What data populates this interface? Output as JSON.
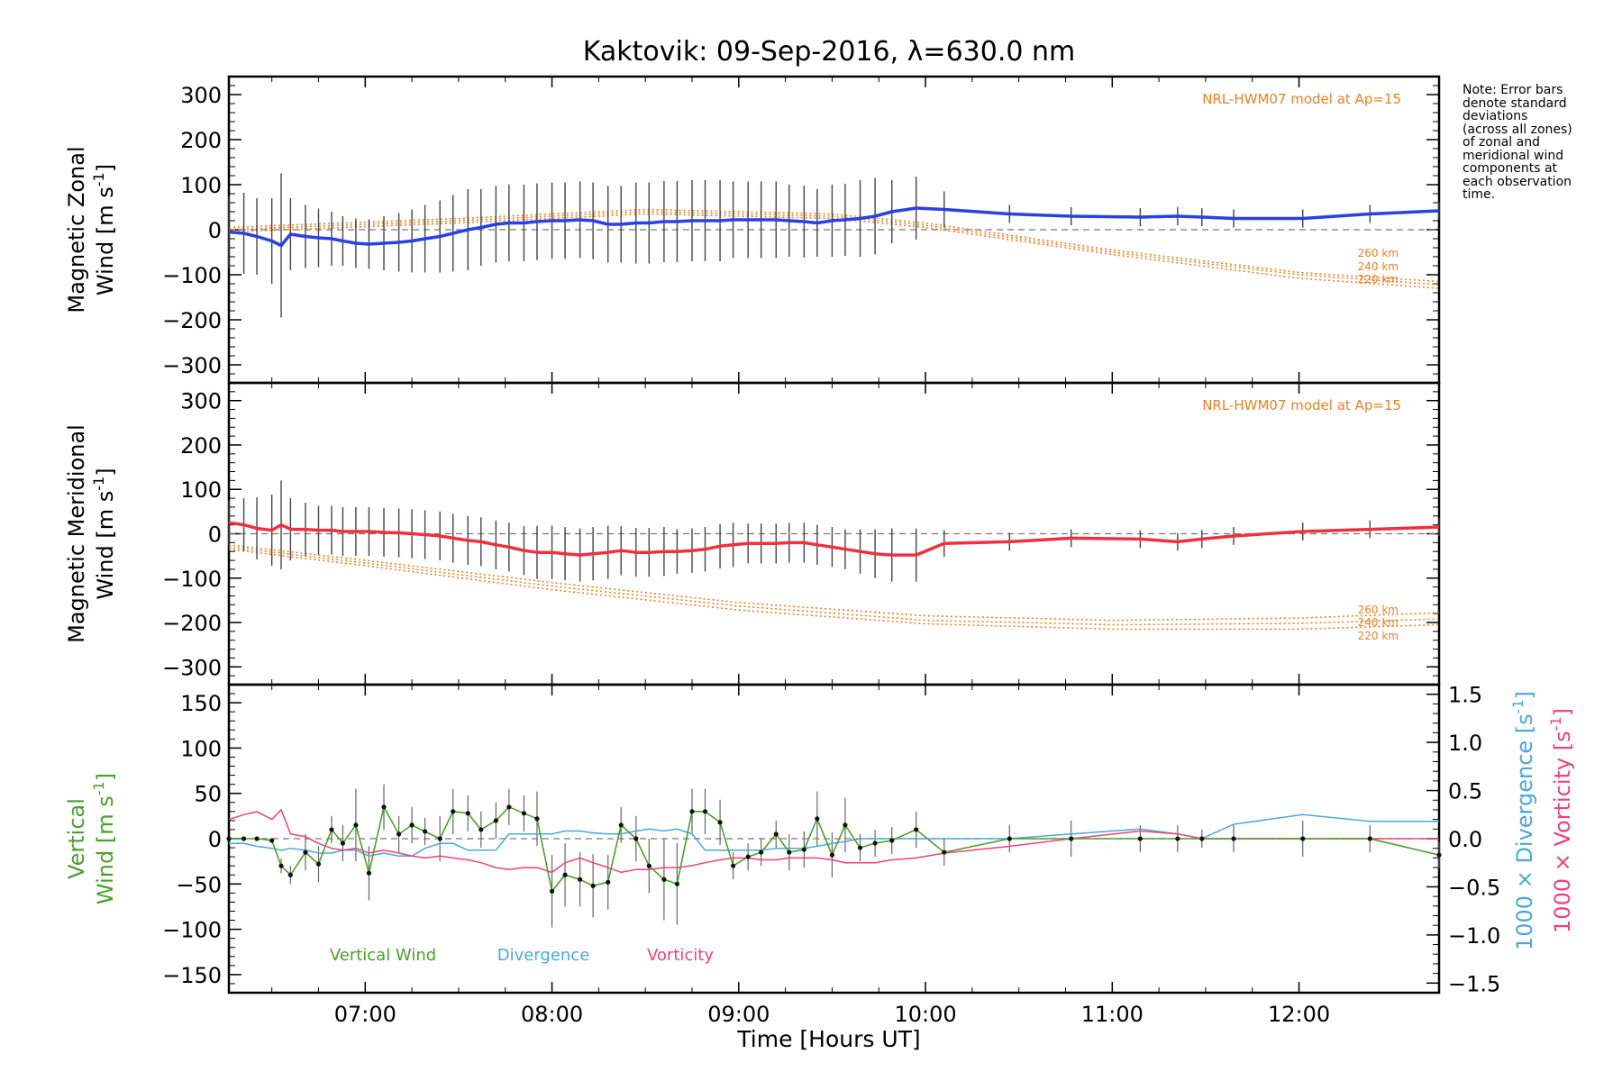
{
  "title": "Kaktovik: 09-Sep-2016, λ=630.0 nm",
  "note": "Note: Error bars\ndenote standard\ndeviations\n(across all zones)\nof zonal and\nmeridional wind\ncomponents at\neach observation\ntime.",
  "xlabel": "Time [Hours UT]",
  "colors": {
    "zonal": "#2a3fe6",
    "meridional": "#f03040",
    "model": "#f08020",
    "vertical": "#4aa02a",
    "divergence": "#4aa8d8",
    "vorticity": "#f0407a",
    "errorbar": "#444444"
  },
  "chart_data": [
    {
      "type": "line",
      "panel": "zonal",
      "ylabel_line1": "Magnetic Zonal",
      "ylabel_line2": "Wind [m s",
      "ylabel_sup": "-1",
      "ylabel_end": "]",
      "model_label": "NRL-HWM07 model at Ap=15",
      "model_altitudes": [
        "260 km",
        "240 km",
        "220 km"
      ],
      "xlim": [
        6.27,
        12.75
      ],
      "ylim": [
        -340,
        340
      ],
      "yticks": [
        300,
        200,
        100,
        0,
        -100,
        -200,
        -300
      ],
      "ytick_labels": [
        "300",
        "200",
        "100",
        "0",
        "−100",
        "−200",
        "−300"
      ],
      "xticks": [
        7,
        8,
        9,
        10,
        11,
        12
      ],
      "grid": false,
      "zero_line": true,
      "series": [
        {
          "x": [
            6.27,
            6.35,
            6.42,
            6.5,
            6.55,
            6.6,
            6.68,
            6.75,
            6.82,
            6.88,
            6.95,
            7.02,
            7.1,
            7.18,
            7.25,
            7.32,
            7.4,
            7.47,
            7.55,
            7.62,
            7.7,
            7.77,
            7.85,
            7.92,
            8.0,
            8.07,
            8.15,
            8.22,
            8.3,
            8.37,
            8.45,
            8.52,
            8.6,
            8.67,
            8.75,
            8.82,
            8.9,
            8.97,
            9.05,
            9.12,
            9.2,
            9.27,
            9.35,
            9.42,
            9.5,
            9.57,
            9.65,
            9.73,
            9.82,
            9.95,
            10.1,
            10.45,
            10.78,
            11.15,
            11.35,
            11.48,
            11.65,
            12.02,
            12.38,
            12.75
          ],
          "y": [
            -5,
            -8,
            -15,
            -25,
            -35,
            -10,
            -15,
            -18,
            -20,
            -25,
            -30,
            -32,
            -30,
            -28,
            -25,
            -20,
            -15,
            -8,
            0,
            5,
            12,
            15,
            15,
            18,
            20,
            20,
            22,
            20,
            12,
            12,
            15,
            15,
            18,
            18,
            20,
            20,
            20,
            22,
            22,
            22,
            22,
            20,
            18,
            15,
            20,
            22,
            25,
            30,
            40,
            48,
            45,
            35,
            30,
            28,
            30,
            28,
            25,
            25,
            35,
            42
          ],
          "err": [
            80,
            90,
            85,
            95,
            160,
            80,
            70,
            65,
            60,
            55,
            55,
            55,
            60,
            65,
            70,
            75,
            80,
            85,
            90,
            85,
            85,
            85,
            85,
            85,
            85,
            85,
            85,
            85,
            85,
            85,
            90,
            90,
            90,
            90,
            90,
            90,
            90,
            85,
            85,
            85,
            85,
            80,
            80,
            75,
            80,
            80,
            85,
            85,
            70,
            70,
            40,
            20,
            20,
            20,
            20,
            20,
            20,
            20,
            20,
            20
          ]
        }
      ],
      "models": [
        {
          "label": "260 km",
          "x": [
            6.27,
            7.5,
            8.5,
            9.5,
            10.0,
            11.0,
            12.0,
            12.75
          ],
          "y": [
            5,
            25,
            45,
            35,
            15,
            -45,
            -95,
            -115
          ]
        },
        {
          "label": "240 km",
          "x": [
            6.27,
            7.5,
            8.5,
            9.5,
            10.0,
            11.0,
            12.0,
            12.75
          ],
          "y": [
            0,
            20,
            40,
            30,
            10,
            -50,
            -100,
            -122
          ]
        },
        {
          "label": "220 km",
          "x": [
            6.27,
            7.5,
            8.5,
            9.5,
            10.0,
            11.0,
            12.0,
            12.75
          ],
          "y": [
            -5,
            15,
            35,
            25,
            5,
            -55,
            -108,
            -130
          ]
        }
      ]
    },
    {
      "type": "line",
      "panel": "meridional",
      "ylabel_line1": "Magnetic Meridional",
      "ylabel_line2": "Wind [m s",
      "ylabel_sup": "-1",
      "ylabel_end": "]",
      "model_label": "NRL-HWM07 model at Ap=15",
      "model_altitudes": [
        "260 km",
        "240 km",
        "220 km"
      ],
      "xlim": [
        6.27,
        12.75
      ],
      "ylim": [
        -340,
        340
      ],
      "yticks": [
        300,
        200,
        100,
        0,
        -100,
        -200,
        -300
      ],
      "ytick_labels": [
        "300",
        "200",
        "100",
        "0",
        "−100",
        "−200",
        "−300"
      ],
      "xticks": [
        7,
        8,
        9,
        10,
        11,
        12
      ],
      "grid": false,
      "zero_line": true,
      "series": [
        {
          "x": [
            6.27,
            6.35,
            6.42,
            6.5,
            6.55,
            6.6,
            6.68,
            6.75,
            6.82,
            6.88,
            6.95,
            7.02,
            7.1,
            7.18,
            7.25,
            7.32,
            7.4,
            7.47,
            7.55,
            7.62,
            7.7,
            7.77,
            7.85,
            7.92,
            8.0,
            8.07,
            8.15,
            8.22,
            8.3,
            8.37,
            8.45,
            8.52,
            8.6,
            8.67,
            8.75,
            8.82,
            8.9,
            8.97,
            9.05,
            9.12,
            9.2,
            9.27,
            9.35,
            9.42,
            9.5,
            9.57,
            9.65,
            9.73,
            9.82,
            9.95,
            10.1,
            10.45,
            10.78,
            11.15,
            11.35,
            11.48,
            11.65,
            12.02,
            12.38,
            12.75
          ],
          "y": [
            25,
            20,
            12,
            8,
            20,
            10,
            10,
            8,
            8,
            5,
            5,
            5,
            3,
            2,
            0,
            -2,
            -5,
            -10,
            -15,
            -18,
            -25,
            -30,
            -38,
            -42,
            -42,
            -45,
            -48,
            -45,
            -42,
            -38,
            -42,
            -42,
            -40,
            -40,
            -38,
            -35,
            -28,
            -25,
            -22,
            -22,
            -22,
            -20,
            -20,
            -25,
            -30,
            -35,
            -40,
            -45,
            -48,
            -48,
            -22,
            -18,
            -10,
            -12,
            -18,
            -12,
            -5,
            5,
            10,
            15
          ],
          "err": [
            50,
            60,
            70,
            80,
            100,
            70,
            60,
            55,
            55,
            55,
            55,
            55,
            55,
            55,
            55,
            55,
            55,
            55,
            55,
            55,
            55,
            55,
            55,
            60,
            60,
            60,
            60,
            60,
            60,
            55,
            55,
            55,
            55,
            50,
            50,
            50,
            50,
            50,
            45,
            45,
            45,
            45,
            45,
            45,
            45,
            45,
            50,
            55,
            60,
            60,
            30,
            20,
            20,
            20,
            20,
            20,
            20,
            20,
            20,
            20
          ]
        }
      ],
      "models": [
        {
          "label": "260 km",
          "x": [
            6.27,
            7.0,
            8.0,
            9.0,
            10.0,
            11.0,
            12.0,
            12.75
          ],
          "y": [
            -25,
            -60,
            -110,
            -155,
            -185,
            -195,
            -190,
            -178
          ]
        },
        {
          "label": "240 km",
          "x": [
            6.27,
            7.0,
            8.0,
            9.0,
            10.0,
            11.0,
            12.0,
            12.75
          ],
          "y": [
            -30,
            -66,
            -118,
            -163,
            -195,
            -205,
            -202,
            -192
          ]
        },
        {
          "label": "220 km",
          "x": [
            6.27,
            7.0,
            8.0,
            9.0,
            10.0,
            11.0,
            12.0,
            12.75
          ],
          "y": [
            -35,
            -72,
            -126,
            -172,
            -203,
            -215,
            -215,
            -205
          ]
        }
      ]
    },
    {
      "type": "line",
      "panel": "vertical",
      "ylabel_line1": "Vertical",
      "ylabel_line2": "Wind [m s",
      "ylabel_sup": "-1",
      "ylabel_end": "]",
      "right_label_div_a": "1000 × Divergence [s",
      "right_label_vor_a": "1000 × Vorticity [s",
      "right_label_sup": "-1",
      "right_label_end": "]",
      "xlim": [
        6.27,
        12.75
      ],
      "ylim": [
        -170,
        170
      ],
      "yticks": [
        150,
        100,
        50,
        0,
        -50,
        -100,
        -150
      ],
      "ytick_labels": [
        "150",
        "100",
        "50",
        "0",
        "−50",
        "−100",
        "−150"
      ],
      "y2lim": [
        -1.6,
        1.6
      ],
      "y2ticks": [
        1.5,
        1.0,
        0.5,
        0.0,
        -0.5,
        -1.0,
        -1.5
      ],
      "y2tick_labels": [
        "1.5",
        "1.0",
        "0.5",
        "0.0",
        "−0.5",
        "−1.0",
        "−1.5"
      ],
      "xticks": [
        7,
        8,
        9,
        10,
        11,
        12
      ],
      "xtick_labels": [
        "07:00",
        "08:00",
        "09:00",
        "10:00",
        "11:00",
        "12:00"
      ],
      "legend": [
        "Vertical Wind",
        "Divergence",
        "Vorticity"
      ],
      "zero_line": true,
      "series": [
        {
          "name": "Vertical Wind",
          "x": [
            6.27,
            6.35,
            6.42,
            6.5,
            6.55,
            6.6,
            6.68,
            6.75,
            6.82,
            6.88,
            6.95,
            7.02,
            7.1,
            7.18,
            7.25,
            7.32,
            7.4,
            7.47,
            7.55,
            7.62,
            7.7,
            7.77,
            7.85,
            7.92,
            8.0,
            8.07,
            8.15,
            8.22,
            8.3,
            8.37,
            8.45,
            8.52,
            8.6,
            8.67,
            8.75,
            8.82,
            8.9,
            8.97,
            9.05,
            9.12,
            9.2,
            9.27,
            9.35,
            9.42,
            9.5,
            9.57,
            9.65,
            9.73,
            9.82,
            9.95,
            10.1,
            10.45,
            10.78,
            11.15,
            11.35,
            11.48,
            11.65,
            12.02,
            12.38,
            12.75
          ],
          "y": [
            0,
            0,
            0,
            -2,
            -30,
            -40,
            -15,
            -28,
            10,
            -5,
            15,
            -38,
            35,
            5,
            15,
            8,
            0,
            30,
            28,
            10,
            20,
            35,
            28,
            22,
            -58,
            -40,
            -45,
            -52,
            -48,
            15,
            0,
            -30,
            -45,
            -50,
            30,
            30,
            18,
            -30,
            -20,
            -15,
            5,
            -15,
            -12,
            22,
            -18,
            15,
            -10,
            -5,
            -2,
            10,
            -15,
            0,
            0,
            0,
            0,
            0,
            0,
            0,
            0,
            -18
          ],
          "err": [
            0,
            0,
            0,
            0,
            8,
            10,
            20,
            20,
            15,
            20,
            40,
            30,
            25,
            20,
            20,
            15,
            25,
            25,
            20,
            20,
            20,
            20,
            20,
            30,
            40,
            35,
            30,
            35,
            30,
            20,
            25,
            30,
            45,
            45,
            25,
            25,
            25,
            15,
            15,
            15,
            15,
            20,
            20,
            30,
            25,
            30,
            15,
            15,
            15,
            20,
            15,
            15,
            20,
            15,
            15,
            10,
            15,
            20,
            15,
            15
          ]
        },
        {
          "name": "Divergence",
          "axis": "right",
          "x": [
            6.27,
            6.35,
            6.42,
            6.5,
            6.55,
            6.6,
            6.68,
            6.75,
            6.82,
            6.88,
            6.95,
            7.02,
            7.1,
            7.18,
            7.25,
            7.32,
            7.4,
            7.47,
            7.55,
            7.62,
            7.7,
            7.77,
            7.85,
            7.92,
            8.0,
            8.07,
            8.15,
            8.22,
            8.3,
            8.37,
            8.45,
            8.52,
            8.6,
            8.67,
            8.75,
            8.82,
            8.9,
            8.97,
            9.05,
            9.12,
            9.2,
            9.27,
            9.35,
            9.42,
            9.5,
            9.57,
            9.65,
            9.73,
            9.82,
            9.95,
            10.1,
            10.45,
            10.78,
            11.15,
            11.35,
            11.48,
            11.65,
            12.02,
            12.38,
            12.75
          ],
          "y": [
            -0.05,
            -0.05,
            -0.08,
            -0.1,
            -0.12,
            -0.1,
            -0.12,
            -0.15,
            -0.15,
            -0.12,
            -0.12,
            -0.18,
            -0.15,
            -0.18,
            -0.18,
            -0.1,
            -0.05,
            -0.05,
            -0.12,
            -0.12,
            -0.12,
            0.05,
            0.05,
            0.05,
            0.05,
            0.08,
            0.08,
            0.06,
            0.05,
            0.05,
            0.08,
            0.1,
            0.08,
            0.1,
            0.05,
            -0.12,
            -0.12,
            -0.12,
            -0.12,
            -0.12,
            -0.1,
            -0.1,
            -0.1,
            -0.08,
            -0.05,
            -0.03,
            0.0,
            0.0,
            0.0,
            0.0,
            0.0,
            0.0,
            0.05,
            0.1,
            0.05,
            0.0,
            0.15,
            0.25,
            0.18,
            0.18
          ]
        },
        {
          "name": "Vorticity",
          "axis": "right",
          "x": [
            6.27,
            6.35,
            6.42,
            6.5,
            6.55,
            6.6,
            6.68,
            6.75,
            6.82,
            6.88,
            6.95,
            7.02,
            7.1,
            7.18,
            7.25,
            7.32,
            7.4,
            7.47,
            7.55,
            7.62,
            7.7,
            7.77,
            7.85,
            7.92,
            8.0,
            8.07,
            8.15,
            8.22,
            8.3,
            8.37,
            8.45,
            8.52,
            8.6,
            8.67,
            8.75,
            8.82,
            8.9,
            8.97,
            9.05,
            9.12,
            9.2,
            9.27,
            9.35,
            9.42,
            9.5,
            9.57,
            9.65,
            9.73,
            9.82,
            9.95,
            10.1,
            10.45,
            10.78,
            11.15,
            11.35,
            11.48,
            11.65,
            12.02,
            12.38,
            12.75
          ],
          "y": [
            0.2,
            0.25,
            0.28,
            0.2,
            0.3,
            0.05,
            0.02,
            -0.05,
            -0.1,
            -0.12,
            -0.1,
            -0.15,
            -0.12,
            -0.15,
            -0.18,
            -0.2,
            -0.18,
            -0.2,
            -0.22,
            -0.25,
            -0.3,
            -0.32,
            -0.3,
            -0.3,
            -0.35,
            -0.25,
            -0.2,
            -0.25,
            -0.3,
            -0.35,
            -0.32,
            -0.32,
            -0.3,
            -0.3,
            -0.28,
            -0.25,
            -0.22,
            -0.2,
            -0.2,
            -0.22,
            -0.22,
            -0.2,
            -0.2,
            -0.2,
            -0.22,
            -0.25,
            -0.25,
            -0.25,
            -0.22,
            -0.2,
            -0.15,
            -0.08,
            0.0,
            0.08,
            0.05,
            0.0,
            0.0,
            0.0,
            0.0,
            0.0
          ]
        }
      ]
    }
  ]
}
